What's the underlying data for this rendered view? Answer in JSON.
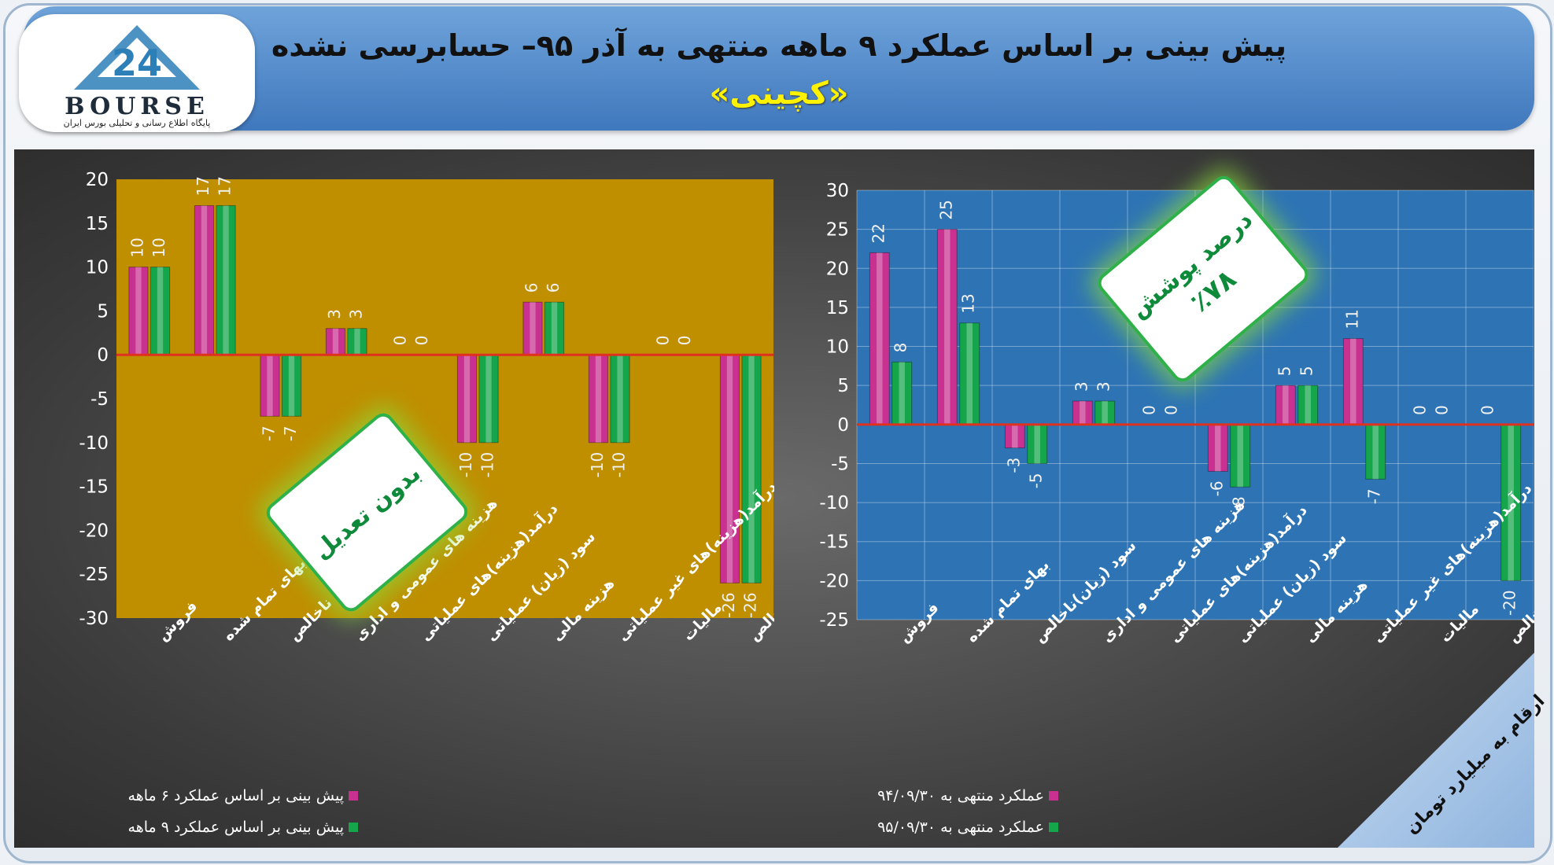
{
  "header": {
    "title": "پیش بینی بر اساس عملکرد ۹ ماهه منتهی به آذر ۹۵– حسابرسی نشده",
    "subtitle": "«کچینی»"
  },
  "logo": {
    "text": "BOURSE",
    "numeral": "24",
    "tagline": "پایگاه اطلاع رسانی و تحلیلی بورس ایران"
  },
  "stickers": {
    "left": "بدون تعدیل",
    "right_line1": "درصد پوشش",
    "right_line2": "٪۷۸"
  },
  "corner_label": "ارقام به میلیارد تومان",
  "colors": {
    "magenta": "#c8318f",
    "green": "#15a64b",
    "left_plot_bg": "#bf8f00",
    "right_plot_bg": "#2e74b5",
    "zero_line": "#e0301e"
  },
  "chart_data": [
    {
      "type": "bar",
      "categories": [
        "فروش",
        "بهای تمام شده",
        "سود (زیان) ناخالص",
        "هزینه های عمومی و اداری",
        "درآمد(هزینه)های عملیاتی",
        "سود (زیان) عملیاتی",
        "هزینه مالی",
        "درآمد(هزینه)های غیر عملیاتی",
        "مالیات",
        "سود خالص"
      ],
      "series": [
        {
          "name": "پیش بینی بر اساس عملکرد ۶ ماهه",
          "values": [
            10,
            17,
            -7,
            3,
            0,
            -10,
            6,
            -10,
            0,
            -26
          ]
        },
        {
          "name": "پیش بینی بر اساس عملکرد ۹ ماهه",
          "values": [
            10,
            17,
            -7,
            3,
            0,
            -10,
            6,
            -10,
            0,
            -26
          ]
        }
      ],
      "ylim": [
        -30,
        20
      ],
      "yticks": [
        20,
        15,
        10,
        5,
        0,
        -5,
        -10,
        -15,
        -20,
        -25,
        -30
      ],
      "grid": false,
      "legend_position": "bottom"
    },
    {
      "type": "bar",
      "categories": [
        "فروش",
        "بهای تمام شده",
        "سود (زیان)ناخالص",
        "هزینه های عمومی و اداری",
        "درآمد(هزینه)های عملیاتی",
        "سود (زیان) عملیاتی",
        "هزینه مالی",
        "درآمد(هزینه)های غیر عملیاتی",
        "مالیات",
        "سود خالص"
      ],
      "series": [
        {
          "name": "عملکرد منتهی به ۹۴/۰۹/۳۰",
          "values": [
            22,
            25,
            -3,
            3,
            0,
            -6,
            5,
            11,
            0,
            0
          ]
        },
        {
          "name": "عملکرد منتهی به ۹۵/۰۹/۳۰",
          "values": [
            8,
            13,
            -5,
            3,
            0,
            -8,
            5,
            -7,
            0,
            -20
          ]
        }
      ],
      "ylim": [
        -25,
        30
      ],
      "yticks": [
        30,
        25,
        20,
        15,
        10,
        5,
        0,
        -5,
        -10,
        -15,
        -20,
        -25
      ],
      "grid": true,
      "legend_position": "bottom"
    }
  ]
}
